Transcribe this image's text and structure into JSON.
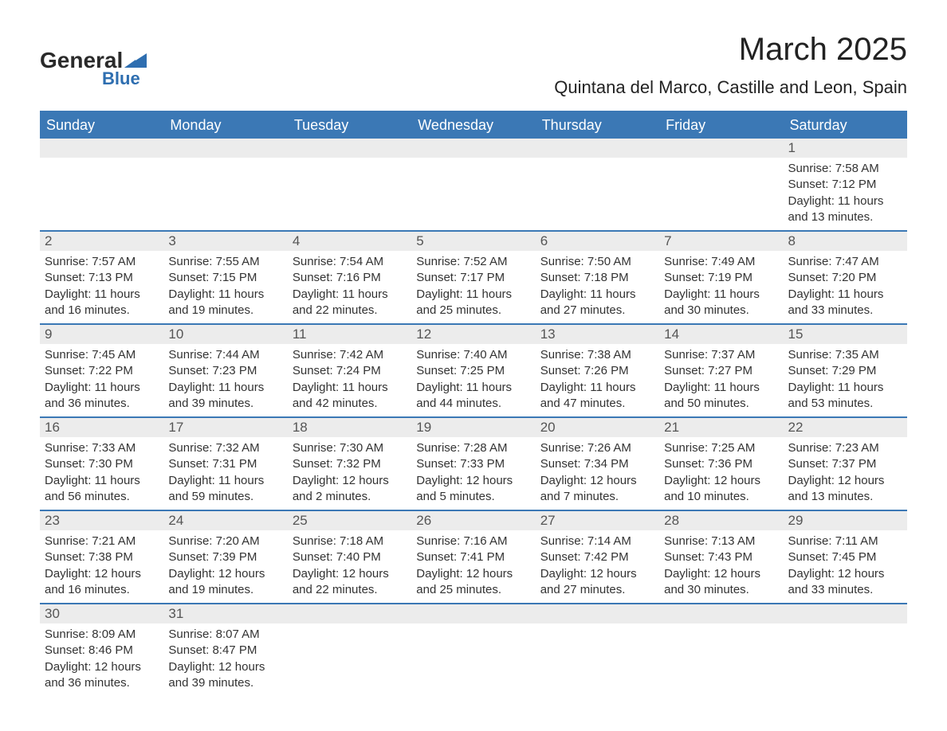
{
  "logo": {
    "text_general": "General",
    "text_blue": "Blue",
    "accent_color": "#2e6eb0"
  },
  "header": {
    "title": "March 2025",
    "subtitle": "Quintana del Marco, Castille and Leon, Spain"
  },
  "colors": {
    "header_bg": "#3b78b5",
    "header_text": "#ffffff",
    "row_border": "#3b78b5",
    "daynum_bg": "#ececec",
    "daynum_text": "#555555",
    "body_text": "#333333",
    "page_bg": "#ffffff"
  },
  "day_headers": [
    "Sunday",
    "Monday",
    "Tuesday",
    "Wednesday",
    "Thursday",
    "Friday",
    "Saturday"
  ],
  "weeks": [
    [
      {
        "day": "",
        "sunrise": "",
        "sunset": "",
        "daylight": ""
      },
      {
        "day": "",
        "sunrise": "",
        "sunset": "",
        "daylight": ""
      },
      {
        "day": "",
        "sunrise": "",
        "sunset": "",
        "daylight": ""
      },
      {
        "day": "",
        "sunrise": "",
        "sunset": "",
        "daylight": ""
      },
      {
        "day": "",
        "sunrise": "",
        "sunset": "",
        "daylight": ""
      },
      {
        "day": "",
        "sunrise": "",
        "sunset": "",
        "daylight": ""
      },
      {
        "day": "1",
        "sunrise": "Sunrise: 7:58 AM",
        "sunset": "Sunset: 7:12 PM",
        "daylight": "Daylight: 11 hours and 13 minutes."
      }
    ],
    [
      {
        "day": "2",
        "sunrise": "Sunrise: 7:57 AM",
        "sunset": "Sunset: 7:13 PM",
        "daylight": "Daylight: 11 hours and 16 minutes."
      },
      {
        "day": "3",
        "sunrise": "Sunrise: 7:55 AM",
        "sunset": "Sunset: 7:15 PM",
        "daylight": "Daylight: 11 hours and 19 minutes."
      },
      {
        "day": "4",
        "sunrise": "Sunrise: 7:54 AM",
        "sunset": "Sunset: 7:16 PM",
        "daylight": "Daylight: 11 hours and 22 minutes."
      },
      {
        "day": "5",
        "sunrise": "Sunrise: 7:52 AM",
        "sunset": "Sunset: 7:17 PM",
        "daylight": "Daylight: 11 hours and 25 minutes."
      },
      {
        "day": "6",
        "sunrise": "Sunrise: 7:50 AM",
        "sunset": "Sunset: 7:18 PM",
        "daylight": "Daylight: 11 hours and 27 minutes."
      },
      {
        "day": "7",
        "sunrise": "Sunrise: 7:49 AM",
        "sunset": "Sunset: 7:19 PM",
        "daylight": "Daylight: 11 hours and 30 minutes."
      },
      {
        "day": "8",
        "sunrise": "Sunrise: 7:47 AM",
        "sunset": "Sunset: 7:20 PM",
        "daylight": "Daylight: 11 hours and 33 minutes."
      }
    ],
    [
      {
        "day": "9",
        "sunrise": "Sunrise: 7:45 AM",
        "sunset": "Sunset: 7:22 PM",
        "daylight": "Daylight: 11 hours and 36 minutes."
      },
      {
        "day": "10",
        "sunrise": "Sunrise: 7:44 AM",
        "sunset": "Sunset: 7:23 PM",
        "daylight": "Daylight: 11 hours and 39 minutes."
      },
      {
        "day": "11",
        "sunrise": "Sunrise: 7:42 AM",
        "sunset": "Sunset: 7:24 PM",
        "daylight": "Daylight: 11 hours and 42 minutes."
      },
      {
        "day": "12",
        "sunrise": "Sunrise: 7:40 AM",
        "sunset": "Sunset: 7:25 PM",
        "daylight": "Daylight: 11 hours and 44 minutes."
      },
      {
        "day": "13",
        "sunrise": "Sunrise: 7:38 AM",
        "sunset": "Sunset: 7:26 PM",
        "daylight": "Daylight: 11 hours and 47 minutes."
      },
      {
        "day": "14",
        "sunrise": "Sunrise: 7:37 AM",
        "sunset": "Sunset: 7:27 PM",
        "daylight": "Daylight: 11 hours and 50 minutes."
      },
      {
        "day": "15",
        "sunrise": "Sunrise: 7:35 AM",
        "sunset": "Sunset: 7:29 PM",
        "daylight": "Daylight: 11 hours and 53 minutes."
      }
    ],
    [
      {
        "day": "16",
        "sunrise": "Sunrise: 7:33 AM",
        "sunset": "Sunset: 7:30 PM",
        "daylight": "Daylight: 11 hours and 56 minutes."
      },
      {
        "day": "17",
        "sunrise": "Sunrise: 7:32 AM",
        "sunset": "Sunset: 7:31 PM",
        "daylight": "Daylight: 11 hours and 59 minutes."
      },
      {
        "day": "18",
        "sunrise": "Sunrise: 7:30 AM",
        "sunset": "Sunset: 7:32 PM",
        "daylight": "Daylight: 12 hours and 2 minutes."
      },
      {
        "day": "19",
        "sunrise": "Sunrise: 7:28 AM",
        "sunset": "Sunset: 7:33 PM",
        "daylight": "Daylight: 12 hours and 5 minutes."
      },
      {
        "day": "20",
        "sunrise": "Sunrise: 7:26 AM",
        "sunset": "Sunset: 7:34 PM",
        "daylight": "Daylight: 12 hours and 7 minutes."
      },
      {
        "day": "21",
        "sunrise": "Sunrise: 7:25 AM",
        "sunset": "Sunset: 7:36 PM",
        "daylight": "Daylight: 12 hours and 10 minutes."
      },
      {
        "day": "22",
        "sunrise": "Sunrise: 7:23 AM",
        "sunset": "Sunset: 7:37 PM",
        "daylight": "Daylight: 12 hours and 13 minutes."
      }
    ],
    [
      {
        "day": "23",
        "sunrise": "Sunrise: 7:21 AM",
        "sunset": "Sunset: 7:38 PM",
        "daylight": "Daylight: 12 hours and 16 minutes."
      },
      {
        "day": "24",
        "sunrise": "Sunrise: 7:20 AM",
        "sunset": "Sunset: 7:39 PM",
        "daylight": "Daylight: 12 hours and 19 minutes."
      },
      {
        "day": "25",
        "sunrise": "Sunrise: 7:18 AM",
        "sunset": "Sunset: 7:40 PM",
        "daylight": "Daylight: 12 hours and 22 minutes."
      },
      {
        "day": "26",
        "sunrise": "Sunrise: 7:16 AM",
        "sunset": "Sunset: 7:41 PM",
        "daylight": "Daylight: 12 hours and 25 minutes."
      },
      {
        "day": "27",
        "sunrise": "Sunrise: 7:14 AM",
        "sunset": "Sunset: 7:42 PM",
        "daylight": "Daylight: 12 hours and 27 minutes."
      },
      {
        "day": "28",
        "sunrise": "Sunrise: 7:13 AM",
        "sunset": "Sunset: 7:43 PM",
        "daylight": "Daylight: 12 hours and 30 minutes."
      },
      {
        "day": "29",
        "sunrise": "Sunrise: 7:11 AM",
        "sunset": "Sunset: 7:45 PM",
        "daylight": "Daylight: 12 hours and 33 minutes."
      }
    ],
    [
      {
        "day": "30",
        "sunrise": "Sunrise: 8:09 AM",
        "sunset": "Sunset: 8:46 PM",
        "daylight": "Daylight: 12 hours and 36 minutes."
      },
      {
        "day": "31",
        "sunrise": "Sunrise: 8:07 AM",
        "sunset": "Sunset: 8:47 PM",
        "daylight": "Daylight: 12 hours and 39 minutes."
      },
      {
        "day": "",
        "sunrise": "",
        "sunset": "",
        "daylight": ""
      },
      {
        "day": "",
        "sunrise": "",
        "sunset": "",
        "daylight": ""
      },
      {
        "day": "",
        "sunrise": "",
        "sunset": "",
        "daylight": ""
      },
      {
        "day": "",
        "sunrise": "",
        "sunset": "",
        "daylight": ""
      },
      {
        "day": "",
        "sunrise": "",
        "sunset": "",
        "daylight": ""
      }
    ]
  ]
}
